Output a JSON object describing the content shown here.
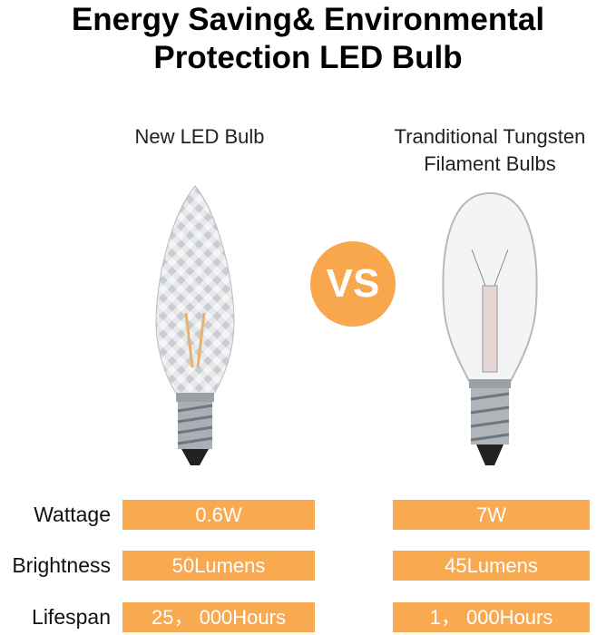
{
  "title_line1": "Energy Saving& Environmental",
  "title_line2": "Protection LED Bulb",
  "left_caption": "New LED Bulb",
  "right_caption_line1": "Tranditional Tungsten",
  "right_caption_line2": "Filament Bulbs",
  "vs_label": "VS",
  "accent_color": "#f9a94f",
  "rows": [
    {
      "label": "Wattage",
      "led": "0.6W",
      "tungsten": "7W"
    },
    {
      "label": "Brightness",
      "led": "50Lumens",
      "tungsten": "45Lumens"
    },
    {
      "label": "Lifespan",
      "led": "25， 000Hours",
      "tungsten": "1， 000Hours"
    }
  ]
}
